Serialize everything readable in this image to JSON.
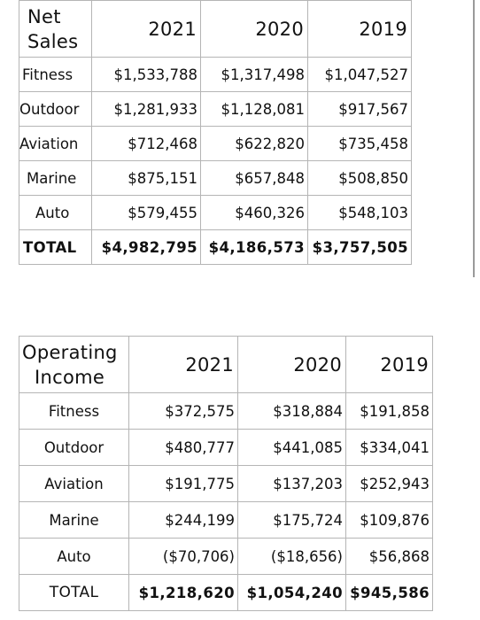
{
  "net_sales": {
    "header_line1": "Net",
    "header_line2": "Sales",
    "years": [
      "2021",
      "2020",
      "2019"
    ],
    "rows": [
      {
        "segment": "Fitness",
        "values": [
          "$1,533,788",
          "$1,317,498",
          "$1,047,527"
        ]
      },
      {
        "segment": "Outdoor",
        "values": [
          "$1,281,933",
          "$1,128,081",
          "$917,567"
        ]
      },
      {
        "segment": "Aviation",
        "values": [
          "$712,468",
          "$622,820",
          "$735,458"
        ]
      },
      {
        "segment": "Marine",
        "values": [
          "$875,151",
          "$657,848",
          "$508,850"
        ]
      },
      {
        "segment": "Auto",
        "values": [
          "$579,455",
          "$460,326",
          "$548,103"
        ]
      }
    ],
    "total": {
      "segment": "TOTAL",
      "values": [
        "$4,982,795",
        "$4,186,573",
        "$3,757,505"
      ]
    }
  },
  "operating_income": {
    "header_line1": "Operating",
    "header_line2": "Income",
    "years": [
      "2021",
      "2020",
      "2019"
    ],
    "rows": [
      {
        "segment": "Fitness",
        "values": [
          "$372,575",
          "$318,884",
          "$191,858"
        ]
      },
      {
        "segment": "Outdoor",
        "values": [
          "$480,777",
          "$441,085",
          "$334,041"
        ]
      },
      {
        "segment": "Aviation",
        "values": [
          "$191,775",
          "$137,203",
          "$252,943"
        ]
      },
      {
        "segment": "Marine",
        "values": [
          "$244,199",
          "$175,724",
          "$109,876"
        ]
      },
      {
        "segment": "Auto",
        "values": [
          "($70,706)",
          "($18,656)",
          "$56,868"
        ]
      }
    ],
    "total": {
      "segment": "TOTAL",
      "values": [
        "$1,218,620",
        "$1,054,240",
        "$945,586"
      ]
    }
  }
}
